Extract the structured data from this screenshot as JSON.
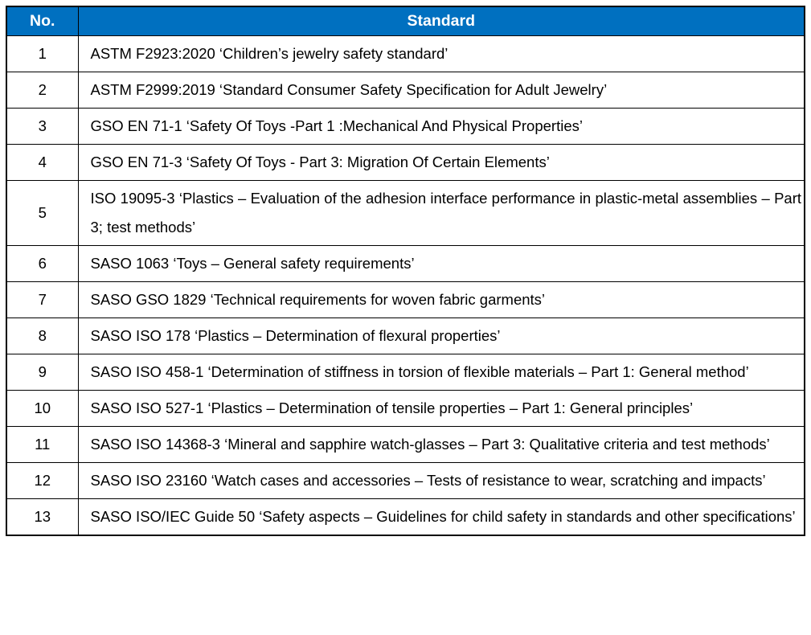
{
  "colors": {
    "header_bg": "#0070C0",
    "header_text": "#FFFFFF",
    "border": "#000000",
    "row_bg": "#FFFFFF",
    "body_text": "#000000"
  },
  "table": {
    "headers": {
      "no": "No.",
      "standard": "Standard"
    },
    "rows": [
      {
        "no": "1",
        "standard": "ASTM F2923:2020 ‘Children’s jewelry safety standard’"
      },
      {
        "no": "2",
        "standard": "ASTM F2999:2019 ‘Standard Consumer Safety Specification for Adult Jewelry’"
      },
      {
        "no": "3",
        "standard": "GSO EN 71-1 ‘Safety Of Toys -Part 1 :Mechanical And Physical Properties’"
      },
      {
        "no": "4",
        "standard": "GSO EN 71-3 ‘Safety Of Toys - Part 3: Migration Of Certain Elements’"
      },
      {
        "no": "5",
        "standard": "ISO 19095-3 ‘Plastics – Evaluation of the adhesion interface performance in plastic-metal assemblies – Part 3; test methods’"
      },
      {
        "no": "6",
        "standard": "SASO 1063 ‘Toys – General safety requirements’"
      },
      {
        "no": "7",
        "standard": "SASO GSO 1829 ‘Technical requirements for woven fabric garments’"
      },
      {
        "no": "8",
        "standard": "SASO ISO 178 ‘Plastics – Determination of flexural properties’"
      },
      {
        "no": "9",
        "standard": "SASO ISO 458-1 ‘Determination of stiffness in torsion of flexible materials – Part 1: General method’"
      },
      {
        "no": "10",
        "standard": "SASO ISO 527-1 ‘Plastics – Determination of tensile properties – Part 1: General principles’"
      },
      {
        "no": "11",
        "standard": "SASO ISO 14368-3 ‘Mineral and sapphire watch-glasses – Part 3: Qualitative criteria and test methods’"
      },
      {
        "no": "12",
        "standard": "SASO ISO 23160 ‘Watch cases and accessories – Tests of resistance to wear, scratching and impacts’"
      },
      {
        "no": "13",
        "standard": "SASO ISO/IEC Guide 50 ‘Safety aspects – Guidelines for child safety in standards and other specifications’"
      }
    ]
  }
}
